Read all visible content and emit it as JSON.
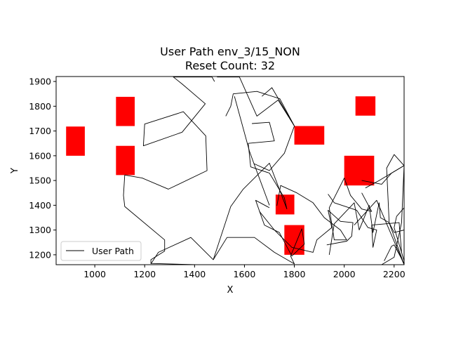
{
  "chart_data": {
    "type": "line",
    "title": "User Path env_3/15_NON",
    "subtitle": "Reset Count: 32",
    "xlabel": "X",
    "ylabel": "Y",
    "xlim": [
      845,
      2240
    ],
    "ylim": [
      1160,
      1920
    ],
    "xticks": [
      1000,
      1200,
      1400,
      1600,
      1800,
      2000,
      2200
    ],
    "yticks": [
      1200,
      1300,
      1400,
      1500,
      1600,
      1700,
      1800,
      1900
    ],
    "grid": false,
    "legend": {
      "position": "lower-left",
      "entries": [
        "User Path"
      ]
    },
    "colors": {
      "path": "#000000",
      "obstacle": "#ff0000"
    },
    "obstacles": [
      {
        "x": [
          885,
          960
        ],
        "y": [
          1600,
          1718
        ]
      },
      {
        "x": [
          1085,
          1160
        ],
        "y": [
          1720,
          1838
        ]
      },
      {
        "x": [
          1085,
          1160
        ],
        "y": [
          1522,
          1640
        ]
      },
      {
        "x": [
          2045,
          2125
        ],
        "y": [
          1762,
          1840
        ]
      },
      {
        "x": [
          1800,
          1920
        ],
        "y": [
          1645,
          1720
        ]
      },
      {
        "x": [
          2000,
          2120
        ],
        "y": [
          1480,
          1600
        ]
      },
      {
        "x": [
          1725,
          1800
        ],
        "y": [
          1363,
          1443
        ]
      },
      {
        "x": [
          1760,
          1840
        ],
        "y": [
          1200,
          1320
        ]
      }
    ],
    "series": [
      {
        "name": "User Path",
        "segments": [
          {
            "x": [
              1405,
              1225,
              1225,
              1280,
              1280,
              1120,
              1115,
              1120,
              1190,
              1295,
              1450,
              1445,
              1355,
              1200,
              1195,
              1350,
              1443,
              1350,
              1315,
              1470,
              1480
            ],
            "y": [
              1160,
              1165,
              1180,
              1215,
              1260,
              1395,
              1440,
              1522,
              1510,
              1465,
              1540,
              1680,
              1778,
              1728,
              1640,
              1695,
              1810,
              1890,
              1918,
              1918,
              1900
            ]
          },
          {
            "x": [
              1490,
              1580,
              1650,
              1735,
              1800,
              1742,
              1650,
              1555,
              1545,
              1525
            ],
            "y": [
              1918,
              1918,
              1760,
              1825,
              1720,
              1830,
              1860,
              1850,
              1800,
              1760
            ]
          },
          {
            "x": [
              1700,
              1638,
              1620,
              1560
            ],
            "y": [
              1400,
              1568,
              1618,
              1840
            ]
          },
          {
            "x": [
              1638,
              1700,
              1760,
              1800,
              1710,
              1670
            ],
            "y": [
              1568,
              1540,
              1610,
              1720,
              1875,
              1840
            ]
          },
          {
            "x": [
              1630,
              1700,
              1720,
              1615
            ],
            "y": [
              1730,
              1735,
              1660,
              1650
            ]
          },
          {
            "x": [
              1615,
              1625,
              1700,
              1760,
              1770
            ],
            "y": [
              1650,
              1555,
              1530,
              1430,
              1385
            ]
          },
          {
            "x": [
              1770,
              1700,
              1595,
              1545,
              1475,
              1385,
              1255,
              1225
            ],
            "y": [
              1385,
              1570,
              1465,
              1395,
              1180,
              1270,
              1210,
              1163
            ]
          },
          {
            "x": [
              1475,
              1530,
              1640,
              1720,
              1800,
              1785,
              1830,
              1840,
              1790,
              1740,
              1680,
              1645,
              1700
            ],
            "y": [
              1180,
              1270,
              1270,
              1210,
              1163,
              1195,
              1305,
              1243,
              1195,
              1290,
              1320,
              1420,
              1390
            ]
          },
          {
            "x": [
              1730,
              1745,
              1810,
              1875,
              1920,
              1985,
              2010,
              1960,
              1940,
              2000,
              2025,
              2070,
              2110,
              2070
            ],
            "y": [
              1398,
              1480,
              1450,
              1410,
              1350,
              1300,
              1260,
              1260,
              1390,
              1510,
              1440,
              1385,
              1375,
              1450
            ]
          },
          {
            "x": [
              1660,
              1720,
              1790,
              1875,
              1890,
              1950,
              1935,
              1985,
              2035,
              2030,
              2010,
              1930
            ],
            "y": [
              1375,
              1300,
              1230,
              1210,
              1260,
              1310,
              1380,
              1335,
              1330,
              1275,
              1255,
              1240
            ]
          },
          {
            "x": [
              1935,
              1960,
              2050,
              2095,
              2130,
              2115,
              2110,
              2220,
              2230,
              2240,
              2200,
              2210,
              2240
            ],
            "y": [
              1445,
              1410,
              1380,
              1310,
              1300,
              1230,
              1320,
              1330,
              1210,
              1175,
              1310,
              1355,
              1390
            ]
          },
          {
            "x": [
              1940,
              1960,
              2040,
              2060,
              2100,
              2115,
              2140,
              2145,
              2180,
              2200,
              2240,
              2240,
              2200,
              2190,
              2160
            ],
            "y": [
              1200,
              1325,
              1410,
              1300,
              1400,
              1290,
              1410,
              1350,
              1330,
              1290,
              1300,
              1165,
              1240,
              1235,
              1175
            ]
          },
          {
            "x": [
              2040,
              2130,
              2240,
              2180,
              2170,
              2200,
              2240,
              2190,
              2150,
              2070
            ],
            "y": [
              1320,
              1420,
              1160,
              1330,
              1550,
              1605,
              1560,
              1530,
              1485,
              1500
            ]
          },
          {
            "x": [
              2085,
              2140,
              2240,
              2230,
              2200,
              2150
            ],
            "y": [
              1470,
              1500,
              1560,
              1330,
              1190,
              1160
            ]
          }
        ]
      }
    ]
  }
}
